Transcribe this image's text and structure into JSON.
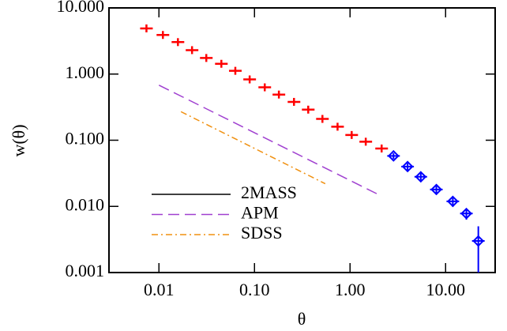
{
  "chart_data": {
    "type": "scatter",
    "xlabel": "θ",
    "ylabel": "w(θ)",
    "xscale": "log",
    "yscale": "log",
    "xlim": [
      0.003,
      33
    ],
    "ylim": [
      0.001,
      10
    ],
    "xticks": [
      0.01,
      {
        "value": 0.1,
        "label": "0.10"
      },
      {
        "value": 1,
        "label": "1.00"
      },
      {
        "value": 10,
        "label": "10.00"
      }
    ],
    "yticks": [
      {
        "value": 0.001,
        "label": "0.001"
      },
      {
        "value": 0.01,
        "label": "0.010"
      },
      {
        "value": 0.1,
        "label": "0.100"
      },
      {
        "value": 1,
        "label": "1.000"
      },
      {
        "value": 10,
        "label": "10.000"
      }
    ],
    "legend": "lower left",
    "points": [
      {
        "color": "#ff0000",
        "marker": "cross",
        "x": [
          0.0074,
          0.011,
          0.0158,
          0.0222,
          0.0313,
          0.045,
          0.063,
          0.089,
          0.128,
          0.18,
          0.259,
          0.365,
          0.514,
          0.74,
          1.04,
          1.46,
          2.14
        ],
        "values": [
          4.9,
          3.9,
          3.04,
          2.3,
          1.75,
          1.43,
          1.12,
          0.83,
          0.63,
          0.49,
          0.38,
          0.29,
          0.21,
          0.16,
          0.12,
          0.095,
          0.075
        ]
      },
      {
        "color": "#0000ff",
        "marker": "diamond-cross",
        "x": [
          2.85,
          4.0,
          5.5,
          8.0,
          11.9,
          16.5,
          22
        ],
        "values": [
          0.058,
          0.04,
          0.028,
          0.018,
          0.0119,
          0.0078,
          0.003
        ],
        "yerr": [
          0.006,
          0.005,
          0.004,
          0.003,
          0.002,
          0.0015,
          0.002
        ]
      }
    ],
    "series": [
      {
        "name": "2MASS",
        "color": "#000000",
        "dash": "solid",
        "x": [],
        "values": []
      },
      {
        "name": "APM",
        "color": "#a040d0",
        "dash": "dashed",
        "x": [
          0.01,
          2.0
        ],
        "values": [
          0.68,
          0.015
        ]
      },
      {
        "name": "SDSS",
        "color": "#f09010",
        "dash": "dashdot",
        "x": [
          0.017,
          0.55
        ],
        "values": [
          0.27,
          0.022
        ]
      }
    ]
  }
}
